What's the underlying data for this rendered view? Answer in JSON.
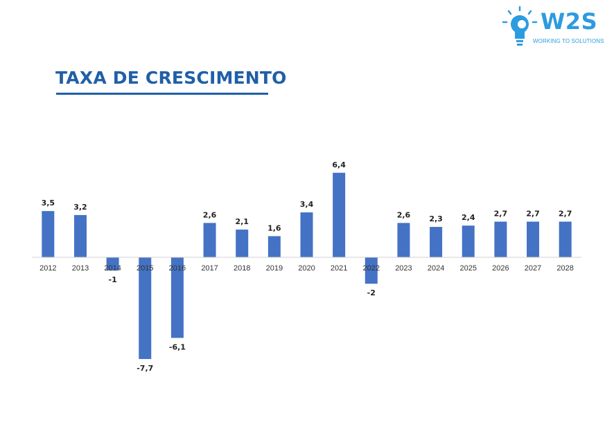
{
  "header": {
    "title": "TAXA DE CRESCIMENTO"
  },
  "logo": {
    "name": "W2S",
    "tagline": "WORKING TO SOLUTIONS",
    "icon": "lightbulb-gear-icon",
    "color": "#2d9be0"
  },
  "colors": {
    "title": "#1f5fa8",
    "bar": "#4472c4"
  },
  "chart_data": {
    "type": "bar",
    "title": "TAXA DE CRESCIMENTO",
    "xlabel": "",
    "ylabel": "",
    "categories": [
      "2012",
      "2013",
      "2014",
      "2015",
      "2016",
      "2017",
      "2018",
      "2019",
      "2020",
      "2021",
      "2022",
      "2023",
      "2024",
      "2025",
      "2026",
      "2027",
      "2028"
    ],
    "values": [
      3.5,
      3.2,
      -1,
      -7.7,
      -6.1,
      2.6,
      2.1,
      1.6,
      3.4,
      6.4,
      -2,
      2.6,
      2.3,
      2.4,
      2.7,
      2.7,
      2.7
    ],
    "value_labels": [
      "3,5",
      "3,2",
      "-1",
      "-7,7",
      "-6,1",
      "2,6",
      "2,1",
      "1,6",
      "3,4",
      "6,4",
      "-2",
      "2,6",
      "2,3",
      "2,4",
      "2,7",
      "2,7",
      "2,7"
    ],
    "ylim": [
      -7.7,
      6.4
    ],
    "grid": false,
    "legend": "none"
  }
}
